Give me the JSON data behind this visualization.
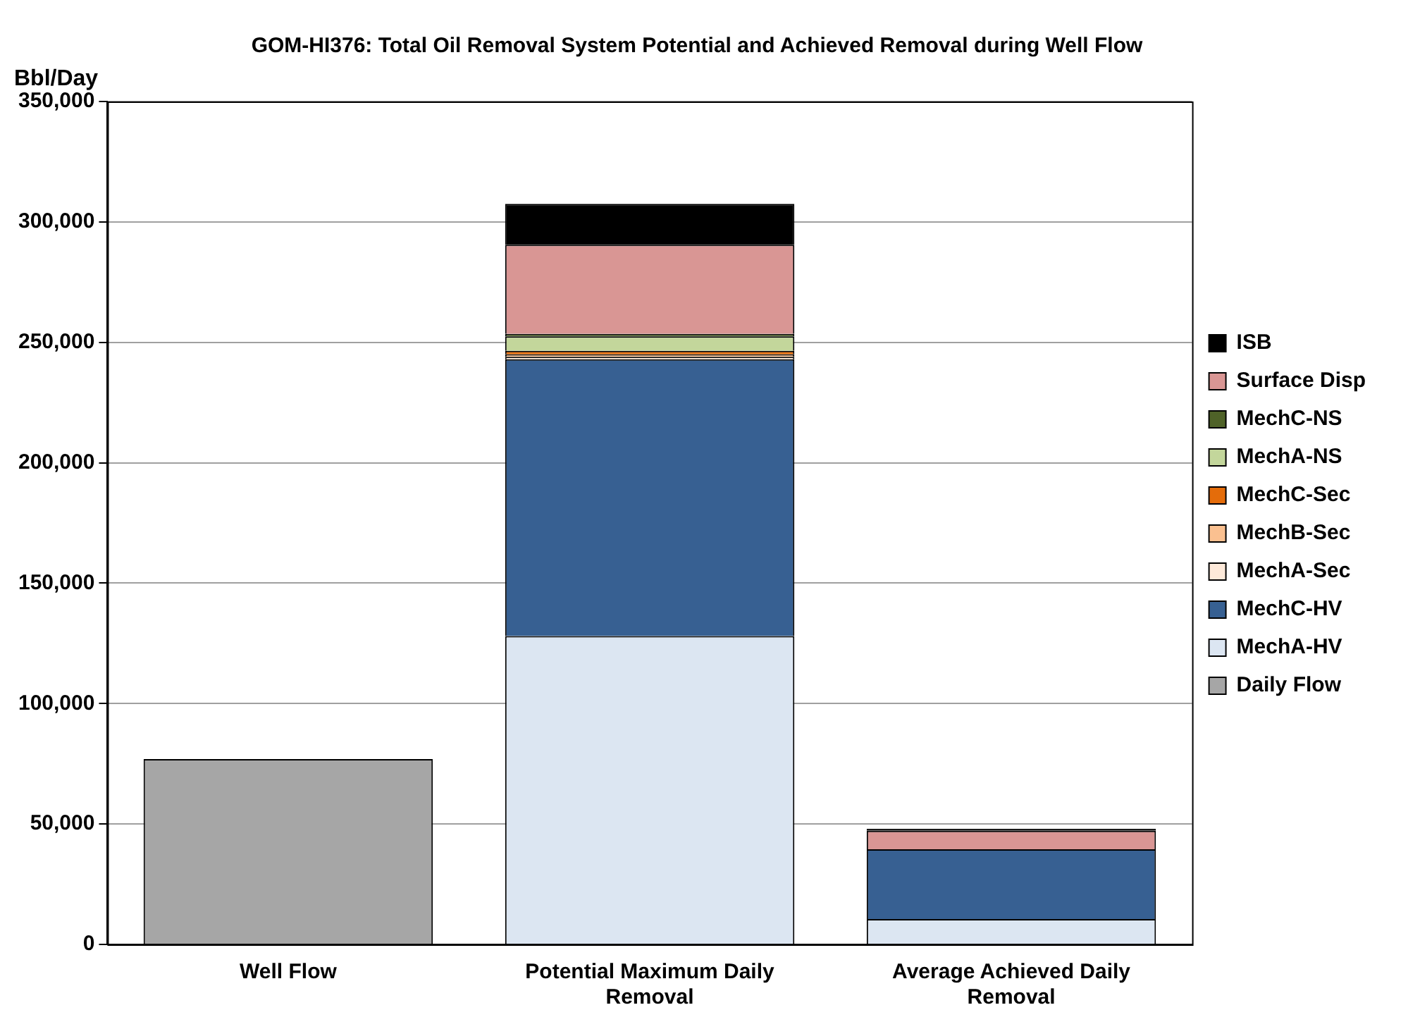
{
  "chart_data": {
    "type": "bar",
    "stacked": true,
    "title": "GOM-HI376: Total Oil Removal System Potential and Achieved Removal during Well Flow",
    "ylabel": "Bbl/Day",
    "categories": [
      "Well Flow",
      "Potential Maximum Daily Removal",
      "Average Achieved Daily Removal"
    ],
    "series": [
      {
        "name": "Daily Flow",
        "color": "#a6a6a6",
        "values": [
          77000,
          0,
          0
        ]
      },
      {
        "name": "MechA-HV",
        "color": "#dce6f2",
        "values": [
          0,
          128000,
          10500
        ]
      },
      {
        "name": "MechC-HV",
        "color": "#376092",
        "values": [
          0,
          115000,
          29000
        ]
      },
      {
        "name": "MechA-Sec",
        "color": "#fde9d9",
        "values": [
          0,
          1000,
          0
        ]
      },
      {
        "name": "MechB-Sec",
        "color": "#fac090",
        "values": [
          0,
          1000,
          0
        ]
      },
      {
        "name": "MechC-Sec",
        "color": "#e46c0a",
        "values": [
          0,
          1500,
          0
        ]
      },
      {
        "name": "MechA-NS",
        "color": "#c3d69b",
        "values": [
          0,
          6000,
          0
        ]
      },
      {
        "name": "MechC-NS",
        "color": "#4f6228",
        "values": [
          0,
          1000,
          0
        ]
      },
      {
        "name": "Surface Disp",
        "color": "#d99694",
        "values": [
          0,
          37000,
          7700
        ]
      },
      {
        "name": "ISB",
        "color": "#000000",
        "values": [
          0,
          17000,
          800
        ]
      }
    ],
    "ylim": [
      0,
      350000
    ],
    "yticks": [
      0,
      {
        "value": 50000,
        "label": "50,000"
      },
      {
        "value": 100000,
        "label": "100,000"
      },
      {
        "value": 150000,
        "label": "150,000"
      },
      {
        "value": 200000,
        "label": "200,000"
      },
      {
        "value": 250000,
        "label": "250,000"
      },
      {
        "value": 300000,
        "label": "300,000"
      },
      {
        "value": 350000,
        "label": "350,000"
      }
    ],
    "grid": "y",
    "legend": "right"
  }
}
